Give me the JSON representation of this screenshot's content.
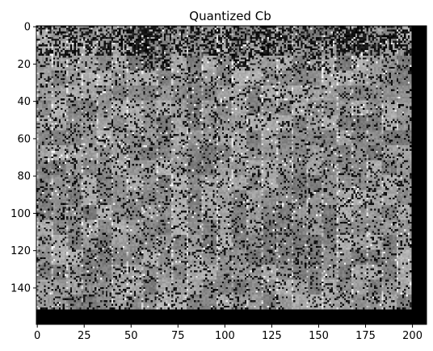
{
  "chart_data": {
    "type": "heatmap",
    "title": "Quantized Cb",
    "xlabel": "",
    "ylabel": "",
    "colormap": "gray",
    "image_width": 208,
    "image_height": 160,
    "xlim": [
      -0.5,
      207.5
    ],
    "ylim": [
      159.5,
      -0.5
    ],
    "x_ticks": [
      0,
      25,
      50,
      75,
      100,
      125,
      150,
      175,
      200
    ],
    "y_ticks": [
      0,
      20,
      40,
      60,
      80,
      100,
      120,
      140
    ],
    "black_regions": [
      {
        "x": [
          200,
          207
        ],
        "y": [
          0,
          159
        ]
      },
      {
        "x": [
          0,
          207
        ],
        "y": [
          152,
          159
        ]
      }
    ],
    "grid": false
  }
}
